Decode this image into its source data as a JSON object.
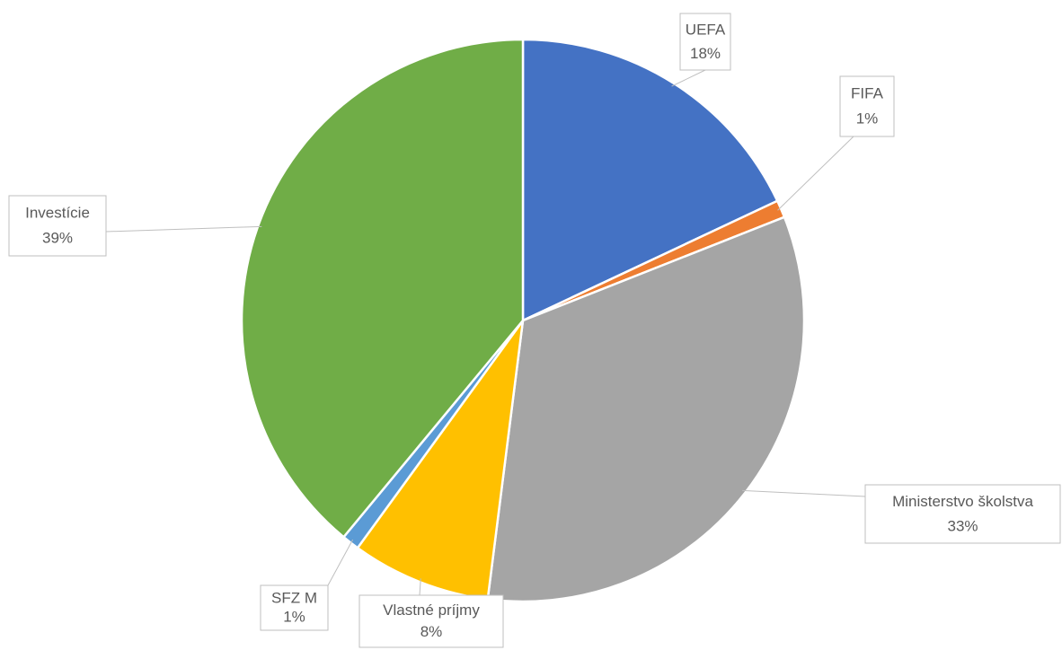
{
  "chart_data": {
    "type": "pie",
    "categories": [
      "UEFA",
      "FIFA",
      "Ministerstvo školstva",
      "Vlastné príjmy",
      "SFZ M",
      "Investície"
    ],
    "values": [
      18,
      1,
      33,
      8,
      1,
      39
    ],
    "value_labels": [
      "18%",
      "1%",
      "33%",
      "8%",
      "1%",
      "39%"
    ],
    "colors": [
      "#4472c4",
      "#ed7d31",
      "#a5a5a5",
      "#ffc000",
      "#5b9bd5",
      "#70ad47"
    ]
  }
}
